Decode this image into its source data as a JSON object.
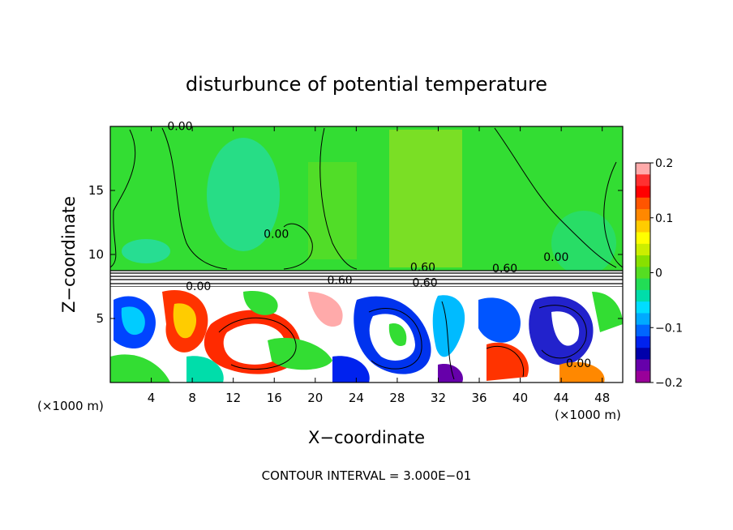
{
  "chart_data": {
    "type": "heatmap",
    "title": "disturbunce of potential temperature",
    "xlabel": "X−coordinate",
    "ylabel": "Z−coordinate",
    "x_unit_left": "(×1000 m)",
    "x_unit_right": "(×1000 m)",
    "footer": "CONTOUR INTERVAL = 3.000E−01",
    "xlim": [
      0,
      50
    ],
    "ylim": [
      0,
      20
    ],
    "x_ticks": [
      4,
      8,
      12,
      16,
      20,
      24,
      28,
      32,
      36,
      40,
      44,
      48
    ],
    "x_tick_labels": [
      "4",
      "8",
      "12",
      "16",
      "20",
      "24",
      "28",
      "32",
      "36",
      "40",
      "44",
      "48"
    ],
    "y_ticks": [
      5,
      10,
      15
    ],
    "y_tick_labels": [
      "5",
      "10",
      "15"
    ],
    "grid": false,
    "colorbar": {
      "placement": "right",
      "vmin": -0.2,
      "vmax": 0.2,
      "ticks": [
        0.2,
        0.1,
        0,
        -0.1,
        -0.2
      ],
      "tick_labels": [
        "0.2",
        "0.1",
        "0",
        "−0.1",
        "−0.2"
      ],
      "colors": [
        "#ffaaaa",
        "#ff3030",
        "#ff0000",
        "#ff5500",
        "#ff8800",
        "#ffcc00",
        "#ffff00",
        "#ccee00",
        "#88e000",
        "#55dd22",
        "#22dd55",
        "#00ddaa",
        "#00ddff",
        "#00aaff",
        "#0066ff",
        "#0022ee",
        "#0000aa",
        "#6600aa",
        "#990099"
      ]
    },
    "contour_labels": [
      {
        "text": "0.00",
        "x": 6.8,
        "z": 19.7
      },
      {
        "text": "0.00",
        "x": 16.2,
        "z": 11.3
      },
      {
        "text": "0.00",
        "x": 43.5,
        "z": 9.5
      },
      {
        "text": "0.60",
        "x": 30.5,
        "z": 8.7
      },
      {
        "text": "0.60",
        "x": 38.5,
        "z": 8.6
      },
      {
        "text": "0.60",
        "x": 22.4,
        "z": 7.7
      },
      {
        "text": "0.60",
        "x": 30.7,
        "z": 7.5
      },
      {
        "text": "0.00",
        "x": 8.6,
        "z": 7.2
      },
      {
        "text": "0.00",
        "x": 45.7,
        "z": 1.2
      }
    ]
  }
}
